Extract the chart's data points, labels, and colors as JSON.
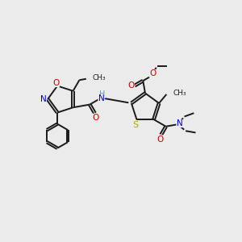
{
  "bg_color": "#ebebeb",
  "bond_color": "#1a1a1a",
  "colors": {
    "O": "#cc0000",
    "N": "#0000cc",
    "S": "#aaaa00",
    "C": "#1a1a1a",
    "H": "#6a9a9a"
  },
  "figsize": [
    3.0,
    3.0
  ],
  "dpi": 100,
  "lw": 1.4,
  "doff": 0.048
}
